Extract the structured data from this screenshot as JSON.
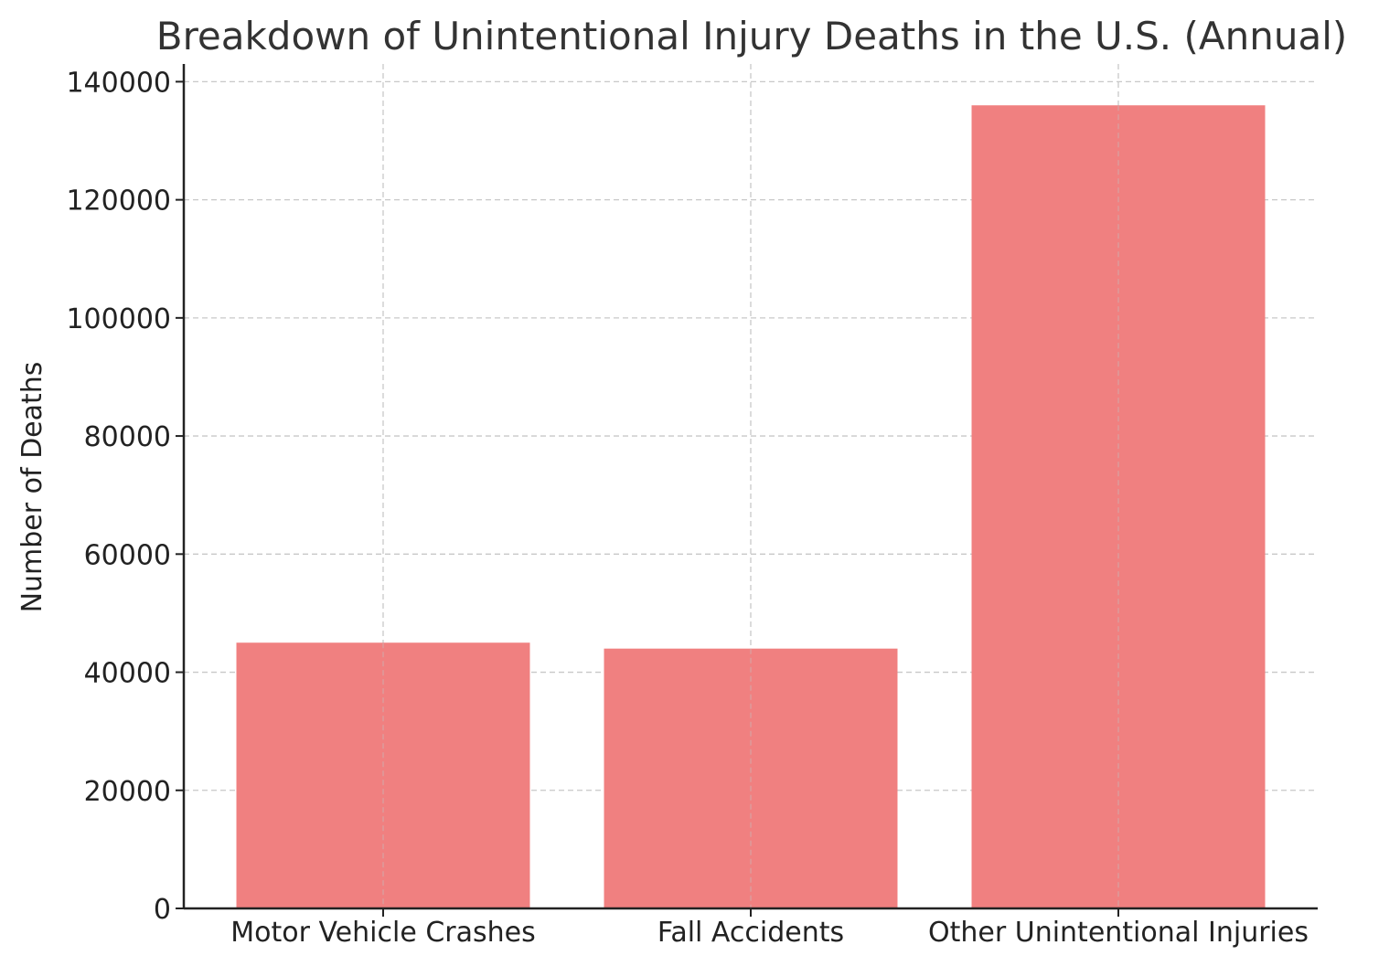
{
  "chart_data": {
    "type": "bar",
    "title": "Breakdown of Unintentional Injury Deaths in the U.S. (Annual)",
    "xlabel": "",
    "ylabel": "Number of Deaths",
    "categories": [
      "Motor Vehicle Crashes",
      "Fall Accidents",
      "Other Unintentional Injuries"
    ],
    "values": [
      45000,
      44000,
      136000
    ],
    "ylim": [
      0,
      143000
    ],
    "yticks": [
      0,
      20000,
      40000,
      60000,
      80000,
      100000,
      120000,
      140000
    ],
    "ytick_labels": [
      "0",
      "20000",
      "40000",
      "60000",
      "80000",
      "100000",
      "120000",
      "140000"
    ],
    "grid": true,
    "bar_color": "#f08080"
  }
}
